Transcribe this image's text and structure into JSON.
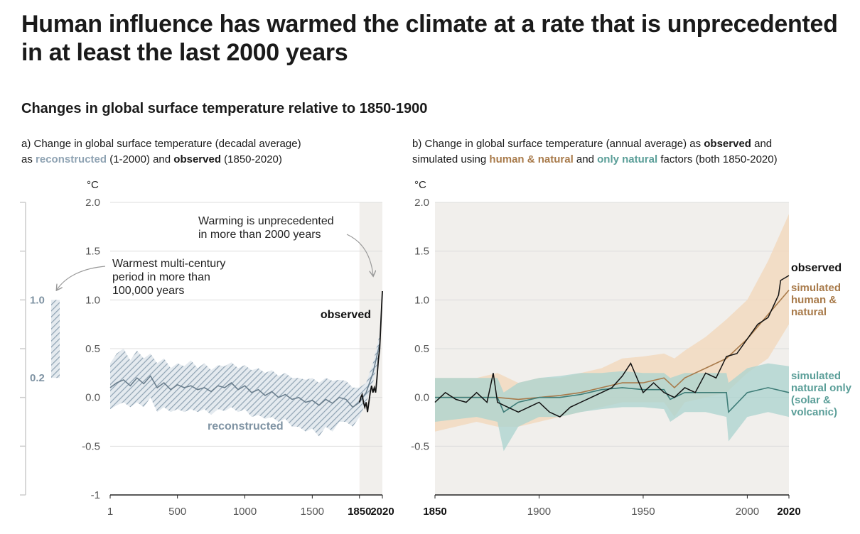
{
  "title": "Human influence has warmed the climate at a rate that is unprecedented in at least the last 2000 years",
  "subtitle": "Changes in global surface temperature relative to 1850-1900",
  "panel_a": {
    "title_line1": "a) Change in global surface temperature (decadal average)",
    "title_line2_pre": "as ",
    "title_recon": "reconstructed",
    "title_mid": " (1-2000) and ",
    "title_obs": "observed",
    "title_post": " (1850-2020)",
    "annotation_warming": [
      "Warming is unprecedented",
      "in more than 2000 years"
    ],
    "annotation_warmest": [
      "Warmest multi-century",
      "period in more than",
      "100,000 years"
    ],
    "label_observed": "observed",
    "label_reconstructed": "reconstructed",
    "side_bar_top": "1.0",
    "side_bar_bottom": "0.2"
  },
  "panel_b": {
    "title_line1_pre": "b) Change in global surface temperature (annual average) as ",
    "title_obs": "observed",
    "title_line1_post": " and",
    "title_line2_pre": "simulated using ",
    "title_human": "human & natural",
    "title_mid": " and ",
    "title_nat": "only natural",
    "title_post": " factors (both 1850-2020)",
    "label_observed": "observed",
    "label_human": [
      "simulated",
      "human &",
      "natural"
    ],
    "label_natural": [
      "simulated",
      "natural only",
      "(solar &",
      "volcanic)"
    ]
  },
  "colors": {
    "reconstructed": "#8fa3b3",
    "observed": "#111111",
    "human_natural": "#a87a4a",
    "human_band": "#f2d9c0",
    "natural": "#5a9e98",
    "natural_band": "#a9d3cf",
    "shade": "#f1efec"
  },
  "chart_data": [
    {
      "type": "line",
      "ylabel": "°C",
      "ylim": [
        -1,
        2
      ],
      "yticks": [
        "2.0",
        "1.5",
        "1.0",
        "0.5",
        "0.0",
        "-0.5",
        "-1"
      ],
      "xlim": [
        1,
        2020
      ],
      "xticks": [
        "1",
        "500",
        "1000",
        "1500",
        "1850",
        "2020"
      ],
      "series": [
        {
          "name": "reconstructed",
          "x": [
            1,
            50,
            100,
            150,
            200,
            250,
            300,
            350,
            400,
            450,
            500,
            550,
            600,
            650,
            700,
            750,
            800,
            850,
            900,
            950,
            1000,
            1050,
            1100,
            1150,
            1200,
            1250,
            1300,
            1350,
            1400,
            1450,
            1500,
            1550,
            1600,
            1650,
            1700,
            1750,
            1800,
            1850,
            1900,
            1950,
            2000
          ],
          "values": [
            0.1,
            0.15,
            0.18,
            0.12,
            0.2,
            0.14,
            0.22,
            0.1,
            0.15,
            0.08,
            0.13,
            0.1,
            0.12,
            0.08,
            0.1,
            0.06,
            0.12,
            0.1,
            0.15,
            0.08,
            0.12,
            0.05,
            0.08,
            0.02,
            0.06,
            0.0,
            0.03,
            -0.02,
            0.0,
            -0.05,
            -0.03,
            -0.08,
            -0.02,
            -0.06,
            0.0,
            -0.02,
            -0.1,
            -0.05,
            0.05,
            0.25,
            0.55
          ],
          "upper": [
            0.35,
            0.45,
            0.5,
            0.38,
            0.48,
            0.4,
            0.45,
            0.35,
            0.4,
            0.3,
            0.35,
            0.32,
            0.38,
            0.3,
            0.35,
            0.28,
            0.33,
            0.32,
            0.36,
            0.3,
            0.33,
            0.28,
            0.3,
            0.25,
            0.28,
            0.22,
            0.25,
            0.2,
            0.2,
            0.18,
            0.2,
            0.15,
            0.2,
            0.17,
            0.18,
            0.17,
            0.1,
            0.1,
            0.15,
            0.35,
            0.65
          ],
          "lower": [
            -0.12,
            -0.08,
            -0.05,
            -0.1,
            -0.05,
            -0.1,
            0.0,
            -0.15,
            -0.1,
            -0.15,
            -0.12,
            -0.15,
            -0.12,
            -0.15,
            -0.12,
            -0.18,
            -0.12,
            -0.14,
            -0.1,
            -0.15,
            -0.12,
            -0.2,
            -0.18,
            -0.22,
            -0.2,
            -0.25,
            -0.22,
            -0.3,
            -0.3,
            -0.35,
            -0.32,
            -0.4,
            -0.3,
            -0.35,
            -0.25,
            -0.25,
            -0.3,
            -0.2,
            -0.05,
            0.15,
            0.45
          ]
        },
        {
          "name": "observed",
          "x": [
            1850,
            1860,
            1870,
            1880,
            1890,
            1900,
            1910,
            1920,
            1930,
            1940,
            1950,
            1960,
            1970,
            1980,
            1990,
            2000,
            2010,
            2020
          ],
          "values": [
            -0.05,
            0.0,
            0.03,
            -0.05,
            -0.1,
            -0.05,
            -0.15,
            -0.05,
            0.05,
            0.12,
            0.05,
            0.1,
            0.05,
            0.2,
            0.38,
            0.5,
            0.8,
            1.09
          ]
        }
      ],
      "annotations": [
        "Warming is unprecedented in more than 2000 years",
        "Warmest multi-century period in more than 100,000 years",
        "observed",
        "reconstructed"
      ],
      "side_range": [
        0.2,
        1.0
      ]
    },
    {
      "type": "line",
      "ylabel": "°C",
      "ylim": [
        -1,
        2
      ],
      "yticks": [
        "2.0",
        "1.5",
        "1.0",
        "0.5",
        "0.0",
        "-0.5"
      ],
      "xlim": [
        1850,
        2020
      ],
      "xticks": [
        "1850",
        "1900",
        "1950",
        "2000",
        "2020"
      ],
      "series": [
        {
          "name": "observed",
          "x": [
            1850,
            1855,
            1860,
            1865,
            1870,
            1875,
            1878,
            1880,
            1885,
            1890,
            1895,
            1900,
            1905,
            1910,
            1915,
            1920,
            1925,
            1930,
            1935,
            1940,
            1944,
            1950,
            1955,
            1960,
            1965,
            1970,
            1975,
            1980,
            1985,
            1990,
            1995,
            2000,
            2005,
            2010,
            2015,
            2016,
            2020
          ],
          "values": [
            -0.05,
            0.05,
            -0.02,
            -0.05,
            0.05,
            -0.05,
            0.25,
            -0.05,
            -0.1,
            -0.15,
            -0.1,
            -0.05,
            -0.15,
            -0.2,
            -0.1,
            -0.05,
            0.0,
            0.05,
            0.1,
            0.22,
            0.35,
            0.05,
            0.15,
            0.05,
            0.0,
            0.1,
            0.05,
            0.25,
            0.2,
            0.42,
            0.45,
            0.6,
            0.75,
            0.82,
            1.05,
            1.2,
            1.25
          ]
        },
        {
          "name": "simulated human & natural",
          "x": [
            1850,
            1870,
            1880,
            1890,
            1900,
            1910,
            1920,
            1930,
            1940,
            1950,
            1960,
            1965,
            1970,
            1980,
            1990,
            2000,
            2010,
            2020
          ],
          "values": [
            0.0,
            0.0,
            0.0,
            -0.02,
            0.0,
            0.02,
            0.05,
            0.1,
            0.15,
            0.15,
            0.2,
            0.1,
            0.2,
            0.3,
            0.4,
            0.6,
            0.85,
            1.1
          ],
          "upper": [
            0.2,
            0.2,
            0.25,
            0.15,
            0.2,
            0.2,
            0.25,
            0.3,
            0.4,
            0.42,
            0.45,
            0.4,
            0.48,
            0.62,
            0.8,
            1.0,
            1.4,
            1.88
          ],
          "lower": [
            -0.35,
            -0.25,
            -0.3,
            -0.3,
            -0.25,
            -0.2,
            -0.15,
            -0.1,
            -0.05,
            -0.05,
            -0.05,
            -0.2,
            -0.05,
            0.0,
            0.05,
            0.25,
            0.4,
            0.75
          ]
        },
        {
          "name": "simulated natural only (solar & volcanic)",
          "x": [
            1850,
            1870,
            1880,
            1883,
            1890,
            1900,
            1910,
            1920,
            1930,
            1940,
            1950,
            1960,
            1963,
            1970,
            1980,
            1990,
            1991,
            2000,
            2010,
            2020
          ],
          "values": [
            0.0,
            0.0,
            0.0,
            -0.15,
            -0.05,
            0.0,
            0.0,
            0.03,
            0.08,
            0.1,
            0.08,
            0.08,
            -0.02,
            0.05,
            0.05,
            0.05,
            -0.15,
            0.05,
            0.1,
            0.05
          ],
          "upper": [
            0.2,
            0.2,
            0.2,
            0.05,
            0.15,
            0.2,
            0.22,
            0.25,
            0.25,
            0.27,
            0.25,
            0.25,
            0.2,
            0.25,
            0.25,
            0.25,
            0.15,
            0.3,
            0.35,
            0.32
          ],
          "lower": [
            -0.25,
            -0.2,
            -0.25,
            -0.55,
            -0.3,
            -0.2,
            -0.2,
            -0.15,
            -0.12,
            -0.1,
            -0.1,
            -0.12,
            -0.25,
            -0.15,
            -0.15,
            -0.2,
            -0.45,
            -0.2,
            -0.15,
            -0.2
          ]
        }
      ]
    }
  ]
}
